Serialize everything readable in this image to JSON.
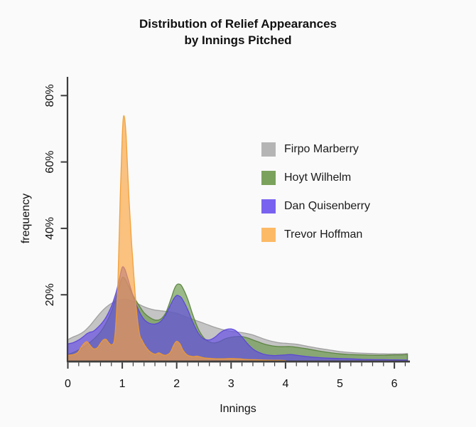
{
  "figure": {
    "title_line1": "Distribution of Relief Appearances",
    "title_line2": "by Innings Pitched"
  },
  "chart_data": {
    "type": "area",
    "title": "Distribution of Relief Appearances by Innings Pitched",
    "xlabel": "Innings",
    "ylabel": "frequency",
    "x_unit": "innings",
    "y_unit": "percent",
    "xlim": [
      0,
      6.25
    ],
    "ylim": [
      0,
      85
    ],
    "grid": false,
    "legend_position": "upper-right-inside",
    "x_tick_values": [
      0,
      1,
      2,
      3,
      4,
      5,
      6
    ],
    "x_tick_labels": [
      "0",
      "1",
      "2",
      "3",
      "4",
      "5",
      "6"
    ],
    "x_minor_tick_step": 0.2,
    "x_minor_tick_max": 6.2,
    "y_tick_values": [
      20,
      40,
      60,
      80
    ],
    "y_tick_labels": [
      "20%",
      "40%",
      "60%",
      "80%"
    ],
    "axis_color": "#3d3d3d",
    "series": [
      {
        "name": "Firpo Marberry",
        "color": "#b5b5b5",
        "fill": "#a8a8a8",
        "stroke": "#9a9a9a",
        "points": {
          "x": [
            0,
            0.1,
            0.2,
            0.3,
            0.4,
            0.5,
            0.6,
            0.7,
            0.8,
            0.9,
            1.0,
            1.1,
            1.2,
            1.3,
            1.4,
            1.5,
            1.6,
            1.7,
            1.8,
            1.9,
            2.0,
            2.1,
            2.2,
            2.3,
            2.4,
            2.5,
            2.6,
            2.7,
            2.8,
            2.9,
            3.0,
            3.1,
            3.2,
            3.3,
            3.4,
            3.5,
            3.6,
            3.7,
            3.8,
            3.9,
            4.0,
            4.2,
            4.4,
            4.6,
            4.8,
            5.0,
            5.2,
            5.4,
            5.6,
            5.8,
            6.0,
            6.1,
            6.24
          ],
          "y": [
            6.5,
            7.3,
            8.0,
            9.0,
            10.6,
            12.6,
            14.6,
            16.2,
            17.4,
            18.2,
            18.6,
            18.6,
            18.0,
            17.2,
            16.4,
            15.8,
            15.4,
            15.2,
            15.0,
            14.8,
            14.4,
            13.8,
            13.2,
            12.6,
            12.0,
            11.4,
            10.8,
            10.2,
            9.7,
            9.3,
            9.0,
            8.8,
            8.6,
            8.3,
            7.9,
            7.3,
            6.7,
            6.2,
            5.8,
            5.5,
            5.4,
            5.1,
            4.5,
            3.9,
            3.4,
            2.9,
            2.6,
            2.4,
            2.3,
            2.2,
            2.2,
            2.2,
            2.3
          ]
        }
      },
      {
        "name": "Hoyt Wilhelm",
        "color": "#7ba25c",
        "fill": "#68984a",
        "stroke": "#567f3b",
        "points": {
          "x": [
            0,
            0.1,
            0.2,
            0.3,
            0.4,
            0.5,
            0.6,
            0.7,
            0.8,
            0.85,
            0.9,
            0.95,
            1.0,
            1.05,
            1.1,
            1.2,
            1.3,
            1.4,
            1.5,
            1.6,
            1.7,
            1.8,
            1.9,
            1.95,
            2.0,
            2.05,
            2.1,
            2.2,
            2.3,
            2.4,
            2.5,
            2.6,
            2.7,
            2.8,
            2.9,
            3.0,
            3.1,
            3.2,
            3.3,
            3.4,
            3.5,
            3.6,
            3.7,
            3.8,
            3.9,
            4.0,
            4.1,
            4.2,
            4.4,
            4.6,
            4.8,
            5.0,
            5.2,
            5.4,
            5.6,
            5.8,
            6.0,
            6.1,
            6.24
          ],
          "y": [
            2.0,
            2.6,
            3.4,
            4.4,
            5.6,
            7.0,
            8.8,
            11.4,
            15.0,
            17.5,
            20.0,
            23.0,
            25.2,
            24.8,
            23.2,
            19.8,
            17.0,
            14.6,
            13.2,
            12.4,
            12.6,
            14.6,
            19.0,
            21.5,
            23.0,
            23.2,
            22.4,
            18.8,
            13.8,
            9.6,
            7.0,
            5.8,
            5.5,
            6.0,
            6.8,
            7.2,
            7.4,
            7.4,
            7.0,
            6.4,
            5.8,
            5.2,
            4.8,
            4.5,
            4.4,
            4.4,
            4.4,
            4.2,
            3.7,
            3.1,
            2.6,
            2.2,
            2.0,
            1.9,
            1.8,
            1.8,
            1.9,
            1.9,
            2.0
          ]
        }
      },
      {
        "name": "Dan Quisenberry",
        "color": "#7a62f0",
        "fill": "#6148e8",
        "stroke": "#5a43d8",
        "points": {
          "x": [
            0,
            0.1,
            0.2,
            0.3,
            0.35,
            0.4,
            0.45,
            0.5,
            0.6,
            0.7,
            0.8,
            0.85,
            0.9,
            0.95,
            1.0,
            1.05,
            1.1,
            1.2,
            1.3,
            1.4,
            1.5,
            1.6,
            1.7,
            1.8,
            1.9,
            1.95,
            2.0,
            2.05,
            2.1,
            2.2,
            2.3,
            2.4,
            2.5,
            2.6,
            2.7,
            2.8,
            2.9,
            3.0,
            3.1,
            3.2,
            3.3,
            3.4,
            3.5,
            3.6,
            3.7,
            3.8,
            3.9,
            4.0,
            4.1,
            4.2,
            4.4,
            4.6,
            4.8,
            5.0,
            5.2,
            5.5,
            5.8,
            6.0,
            6.24
          ],
          "y": [
            5.2,
            5.6,
            6.4,
            7.6,
            8.3,
            8.7,
            8.9,
            9.4,
            11.0,
            13.2,
            16.5,
            18.8,
            21.5,
            25.0,
            28.3,
            27.6,
            25.0,
            19.6,
            15.4,
            12.6,
            11.4,
            11.2,
            11.9,
            14.0,
            17.4,
            18.9,
            19.8,
            19.6,
            18.8,
            15.6,
            11.6,
            8.4,
            6.7,
            6.4,
            7.2,
            8.6,
            9.5,
            9.7,
            9.0,
            7.3,
            5.3,
            3.7,
            2.7,
            2.1,
            1.8,
            1.7,
            1.8,
            1.9,
            2.0,
            1.8,
            1.4,
            1.1,
            0.9,
            0.8,
            0.7,
            0.5,
            0.45,
            0.4,
            0.35
          ]
        }
      },
      {
        "name": "Trevor Hoffman",
        "color": "#fcba66",
        "fill": "#fba33e",
        "stroke": "#f19a2c",
        "points": {
          "x": [
            0,
            0.1,
            0.18,
            0.25,
            0.3,
            0.35,
            0.4,
            0.45,
            0.5,
            0.55,
            0.6,
            0.65,
            0.7,
            0.75,
            0.8,
            0.85,
            0.88,
            0.92,
            0.96,
            1.0,
            1.03,
            1.07,
            1.12,
            1.17,
            1.22,
            1.27,
            1.32,
            1.36,
            1.42,
            1.5,
            1.6,
            1.67,
            1.74,
            1.8,
            1.88,
            1.95,
            2.0,
            2.06,
            2.12,
            2.2,
            2.3,
            2.38,
            2.5,
            2.65,
            2.8,
            3.0,
            3.15,
            3.3,
            3.5,
            3.7,
            3.9,
            4.0
          ],
          "y": [
            1.8,
            2.0,
            2.6,
            4.4,
            5.4,
            5.9,
            5.0,
            4.0,
            3.7,
            4.2,
            5.4,
            6.4,
            6.6,
            5.6,
            4.9,
            6.0,
            11.0,
            24.0,
            48.0,
            68.0,
            74.0,
            68.0,
            50.0,
            36.0,
            24.0,
            14.0,
            8.0,
            6.4,
            4.6,
            3.0,
            2.1,
            2.5,
            2.0,
            1.8,
            2.6,
            5.0,
            6.0,
            5.2,
            3.2,
            1.8,
            1.4,
            1.5,
            1.0,
            0.8,
            0.7,
            0.8,
            0.7,
            0.5,
            0.4,
            0.3,
            0.25,
            0.2
          ]
        }
      }
    ]
  }
}
